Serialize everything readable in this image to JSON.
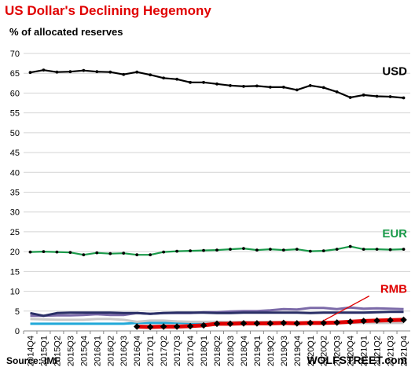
{
  "header": {
    "title": "US Dollar's  Declining Hegemony",
    "subtitle": "% of allocated reserves"
  },
  "footer": {
    "source": "Source: IMF",
    "brand": "WOLFSTREET.com"
  },
  "chart_data": {
    "type": "line",
    "title": "US Dollar's  Declining Hegemony",
    "subtitle": "% of allocated reserves",
    "xlabel": "",
    "ylabel": "",
    "ylim": [
      0,
      70
    ],
    "yticks": [
      0,
      5,
      10,
      15,
      20,
      25,
      30,
      35,
      40,
      45,
      50,
      55,
      60,
      65,
      70
    ],
    "grid": "horizontal",
    "legend": "inline labels",
    "x": [
      "2014Q4",
      "2015Q1",
      "2015Q2",
      "2015Q3",
      "2015Q4",
      "2016Q1",
      "2016Q2",
      "2016Q3",
      "2016Q4",
      "2017Q1",
      "2017Q2",
      "2017Q3",
      "2017Q4",
      "2018Q1",
      "2018Q2",
      "2018Q3",
      "2018Q4",
      "2019Q1",
      "2019Q2",
      "2019Q3",
      "2019Q4",
      "2020Q1",
      "2020Q2",
      "2020Q3",
      "2020Q4",
      "2021Q1",
      "2021Q2",
      "2021Q3",
      "2021Q4"
    ],
    "series": [
      {
        "name": "USD",
        "color": "#000000",
        "values": [
          65.2,
          65.8,
          65.3,
          65.4,
          65.7,
          65.4,
          65.3,
          64.7,
          65.3,
          64.6,
          63.8,
          63.5,
          62.7,
          62.7,
          62.3,
          61.9,
          61.7,
          61.8,
          61.5,
          61.5,
          60.8,
          61.9,
          61.4,
          60.3,
          58.9,
          59.5,
          59.2,
          59.1,
          58.8
        ]
      },
      {
        "name": "EUR",
        "color": "#1a9a4a",
        "values": [
          19.9,
          20.0,
          19.9,
          19.8,
          19.2,
          19.7,
          19.5,
          19.6,
          19.2,
          19.2,
          19.9,
          20.1,
          20.2,
          20.3,
          20.4,
          20.6,
          20.8,
          20.4,
          20.6,
          20.4,
          20.6,
          20.1,
          20.2,
          20.6,
          21.3,
          20.6,
          20.6,
          20.5,
          20.6
        ]
      },
      {
        "name": "RMB",
        "color": "#e00000",
        "values": [
          null,
          null,
          null,
          null,
          null,
          null,
          null,
          null,
          1.1,
          1.0,
          1.1,
          1.1,
          1.2,
          1.4,
          1.8,
          1.8,
          1.9,
          1.9,
          1.9,
          2.0,
          1.9,
          2.0,
          2.0,
          2.1,
          2.3,
          2.5,
          2.6,
          2.7,
          2.8
        ]
      },
      {
        "name": "",
        "color": "#2a2f66",
        "values": [
          4.5,
          3.8,
          4.5,
          4.6,
          4.6,
          4.6,
          4.6,
          4.5,
          4.5,
          4.3,
          4.5,
          4.6,
          4.6,
          4.6,
          4.5,
          4.5,
          4.6,
          4.6,
          4.6,
          4.6,
          4.6,
          4.5,
          4.6,
          4.6,
          4.6,
          4.6,
          4.7,
          4.8,
          4.8
        ]
      },
      {
        "name": "",
        "color": "#7b6aa8",
        "values": [
          3.8,
          3.8,
          3.9,
          3.9,
          4.0,
          4.2,
          4.0,
          4.0,
          4.5,
          4.3,
          4.5,
          4.5,
          4.5,
          4.7,
          4.7,
          4.9,
          5.0,
          5.0,
          5.2,
          5.5,
          5.4,
          5.8,
          5.8,
          5.5,
          5.9,
          5.6,
          5.7,
          5.6,
          5.5
        ]
      },
      {
        "name": "",
        "color": "#c8c8c8",
        "values": [
          3.0,
          2.9,
          2.8,
          2.8,
          2.8,
          3.0,
          3.0,
          2.8,
          2.3,
          2.6,
          2.6,
          2.4,
          2.3,
          2.3,
          2.3,
          2.2,
          2.3,
          2.2,
          2.3,
          2.2,
          2.1,
          2.1,
          2.1,
          2.0,
          2.0,
          2.0,
          2.0,
          2.0,
          2.0
        ]
      },
      {
        "name": "",
        "color": "#20a8d8",
        "values": [
          1.8,
          1.8,
          1.8,
          1.8,
          1.8,
          1.8,
          1.8,
          1.8,
          2.0,
          2.0,
          2.0,
          2.0,
          2.0,
          2.0,
          2.0,
          2.0,
          1.9,
          1.9,
          2.0,
          1.9,
          1.9,
          1.9,
          2.0,
          2.0,
          2.1,
          2.1,
          2.1,
          2.2,
          2.4
        ]
      }
    ],
    "colors": {
      "title": "#e00000",
      "grid": "#d4d4d4",
      "rmb_band": "#e00000",
      "markers": "#000000"
    }
  }
}
